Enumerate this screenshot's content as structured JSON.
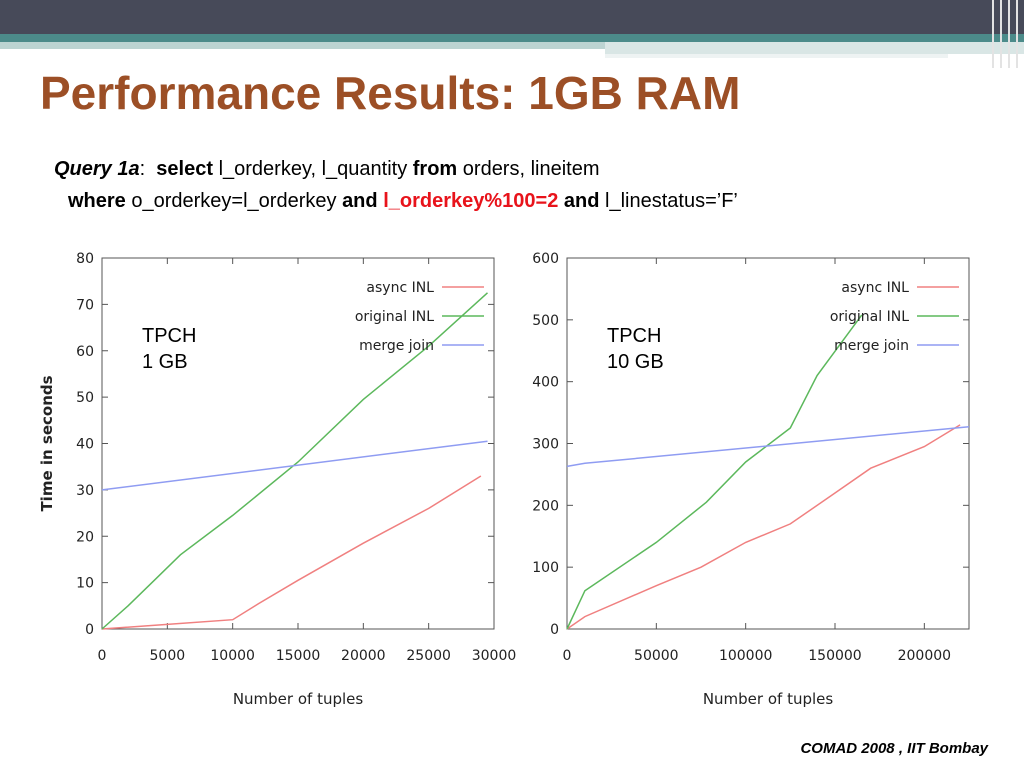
{
  "title": "Performance Results: 1GB RAM",
  "query": {
    "label": "Query 1a",
    "colon": ":",
    "select_kw": "select",
    "select_cols": "l_orderkey, l_quantity",
    "from_kw": "from",
    "from_tables": "orders, lineitem",
    "where_kw": "where",
    "where_cond": "o_orderkey=l_orderkey",
    "and1_kw": "and",
    "highlight_cond": "l_orderkey%100=2",
    "and2_kw": "and",
    "last_cond": "l_linestatus=’F’"
  },
  "footer": "COMAD 2008 , IIT Bombay",
  "colors": {
    "title": "#9c4f26",
    "highlight": "#e8131b",
    "async": "#f08080",
    "original": "#5cb85c",
    "merge": "#8f9cf2"
  },
  "chart_data": [
    {
      "type": "line",
      "annotation": [
        "TPCH",
        "1 GB"
      ],
      "xlabel": "Number of tuples",
      "ylabel": "Time in seconds",
      "xlim": [
        0,
        30000
      ],
      "ylim": [
        0,
        80
      ],
      "xticks": [
        0,
        5000,
        10000,
        15000,
        20000,
        25000,
        30000
      ],
      "yticks": [
        0,
        10,
        20,
        30,
        40,
        50,
        60,
        70,
        80
      ],
      "legend_position": "top-right",
      "series": [
        {
          "name": "async INL",
          "color": "#f08080",
          "x": [
            0,
            5000,
            10000,
            12000,
            15000,
            20000,
            25000,
            29000
          ],
          "y": [
            0,
            1,
            2,
            5.5,
            10.5,
            18.5,
            26,
            33
          ]
        },
        {
          "name": "original INL",
          "color": "#5cb85c",
          "x": [
            0,
            2000,
            4000,
            6000,
            10000,
            15000,
            20000,
            25000,
            29500
          ],
          "y": [
            0,
            5,
            10.5,
            16,
            24.5,
            36,
            49.5,
            61,
            72.5
          ]
        },
        {
          "name": "merge join",
          "color": "#8f9cf2",
          "x": [
            0,
            29500
          ],
          "y": [
            30,
            40.5
          ]
        }
      ]
    },
    {
      "type": "line",
      "annotation": [
        "TPCH",
        "10 GB"
      ],
      "xlabel": "Number of tuples",
      "ylabel": "",
      "xlim": [
        0,
        225000
      ],
      "ylim": [
        0,
        600
      ],
      "xticks": [
        0,
        50000,
        100000,
        150000,
        200000
      ],
      "yticks": [
        0,
        100,
        200,
        300,
        400,
        500,
        600
      ],
      "legend_position": "top-right",
      "series": [
        {
          "name": "async INL",
          "color": "#f08080",
          "x": [
            0,
            10000,
            50000,
            75000,
            100000,
            125000,
            150000,
            170000,
            200000,
            220000
          ],
          "y": [
            0,
            20,
            70,
            100,
            140,
            170,
            220,
            260,
            295,
            330
          ]
        },
        {
          "name": "original INL",
          "color": "#5cb85c",
          "x": [
            0,
            10000,
            50000,
            78000,
            100000,
            125000,
            140000,
            165000
          ],
          "y": [
            0,
            62,
            140,
            205,
            270,
            325,
            410,
            508
          ]
        },
        {
          "name": "merge join",
          "color": "#8f9cf2",
          "x": [
            0,
            10000,
            225000
          ],
          "y": [
            263,
            268,
            327
          ]
        }
      ]
    }
  ]
}
